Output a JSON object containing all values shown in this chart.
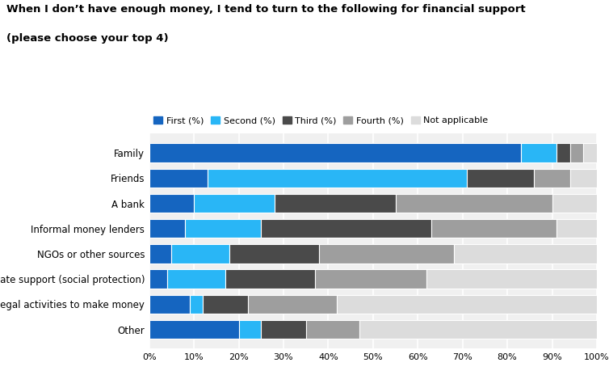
{
  "title_line1": "When I don’t have enough money, I tend to turn to the following for financial support",
  "title_line2": "(please choose your top 4)",
  "categories": [
    "Family",
    "Friends",
    "A bank",
    "Informal money lenders",
    "NGOs or other sources",
    "State support (social protection)",
    "Illegal activities to make money",
    "Other"
  ],
  "series": {
    "First (%)": [
      83,
      13,
      10,
      8,
      5,
      4,
      9,
      20
    ],
    "Second (%)": [
      8,
      58,
      18,
      17,
      13,
      13,
      3,
      5
    ],
    "Third (%)": [
      3,
      15,
      27,
      38,
      20,
      20,
      10,
      10
    ],
    "Fourth (%)": [
      3,
      8,
      35,
      28,
      30,
      25,
      20,
      12
    ],
    "Not applicable": [
      3,
      6,
      10,
      9,
      32,
      38,
      58,
      53
    ]
  },
  "colors": {
    "First (%)": "#1565C0",
    "Second (%)": "#29B6F6",
    "Third (%)": "#4A4A4A",
    "Fourth (%)": "#9E9E9E",
    "Not applicable": "#DCDCDC"
  },
  "legend_labels": [
    "First (%)",
    "Second (%)",
    "Third (%)",
    "Fourth (%)",
    "Not applicable"
  ],
  "background_color": "#FFFFFF",
  "plot_background": "#F0F0F0"
}
